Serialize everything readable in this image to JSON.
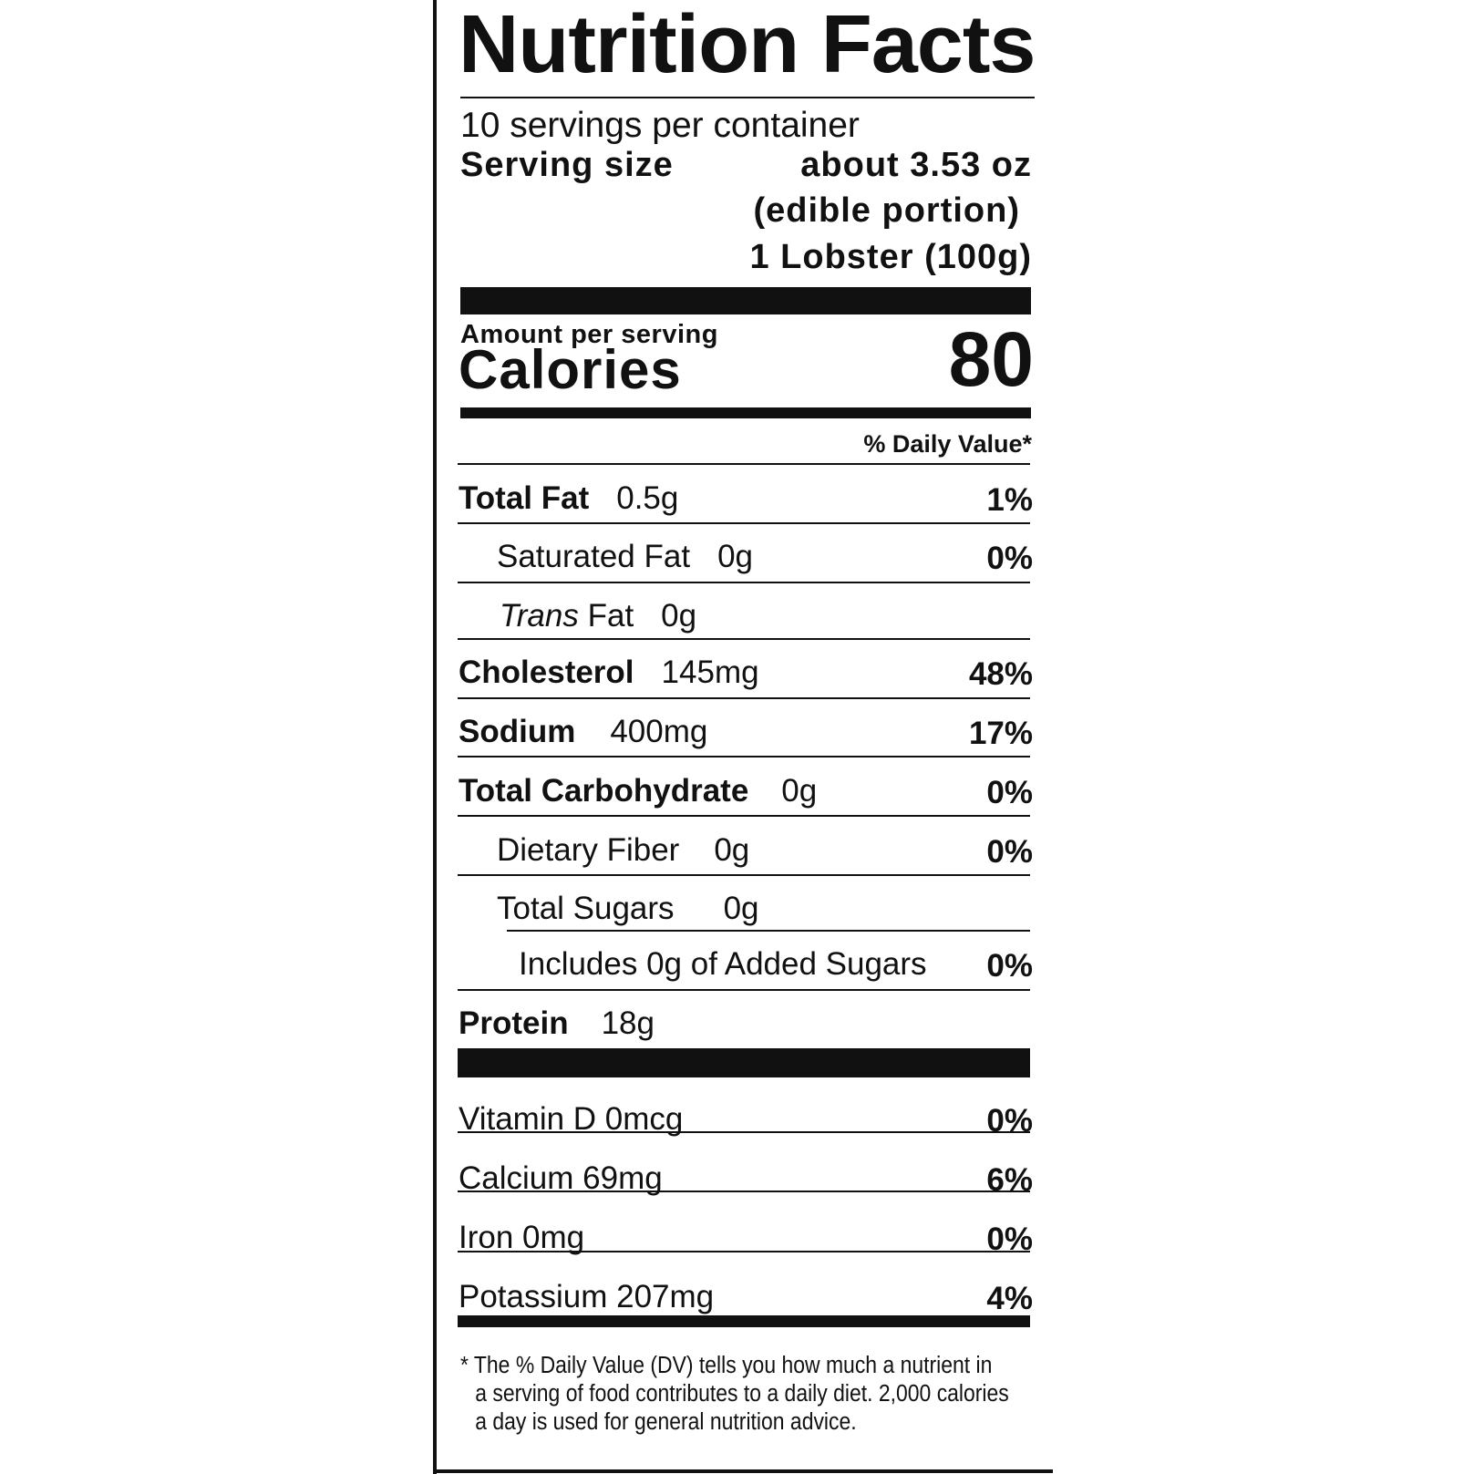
{
  "title": "Nutrition Facts",
  "servings_per_container": "10 servings per container",
  "serving_size_label": "Serving size",
  "serving_size_lines": [
    "about 3.53 oz",
    "(edible portion)",
    "1 Lobster (100g)"
  ],
  "amount_per_serving": "Amount per serving",
  "calories_label": "Calories",
  "calories_value": "80",
  "daily_value_header": "% Daily Value*",
  "nutrients": [
    {
      "name": "Total Fat",
      "amount": "0.5g",
      "dv": "1%",
      "bold": true
    },
    {
      "name": "Saturated Fat",
      "amount": "0g",
      "dv": "0%",
      "bold": false
    },
    {
      "name": "Trans",
      "name_suffix": " Fat",
      "amount": "0g",
      "dv": "",
      "bold": false
    },
    {
      "name": "Cholesterol",
      "amount": "145mg",
      "dv": "48%",
      "bold": true
    },
    {
      "name": "Sodium",
      "amount": "400mg",
      "dv": "17%",
      "bold": true
    },
    {
      "name": "Total Carbohydrate",
      "amount": "0g",
      "dv": "0%",
      "bold": true
    },
    {
      "name": "Dietary Fiber",
      "amount": "0g",
      "dv": "0%",
      "bold": false
    },
    {
      "name": "Total Sugars",
      "amount": "0g",
      "dv": "",
      "bold": false
    },
    {
      "name": "Includes 0g of Added Sugars",
      "amount": "",
      "dv": "0%",
      "bold": false
    },
    {
      "name": "Protein",
      "amount": "18g",
      "dv": "",
      "bold": true
    }
  ],
  "vitamins": [
    {
      "label": "Vitamin D 0mcg",
      "dv": "0%"
    },
    {
      "label": "Calcium 69mg",
      "dv": "6%"
    },
    {
      "label": "Iron 0mg",
      "dv": "0%"
    },
    {
      "label": "Potassium 207mg",
      "dv": "4%"
    }
  ],
  "footnote": [
    "* The % Daily Value (DV) tells you how much a nutrient in",
    "a serving of food contributes to a daily diet. 2,000 calories",
    "a day is used for general nutrition advice."
  ]
}
